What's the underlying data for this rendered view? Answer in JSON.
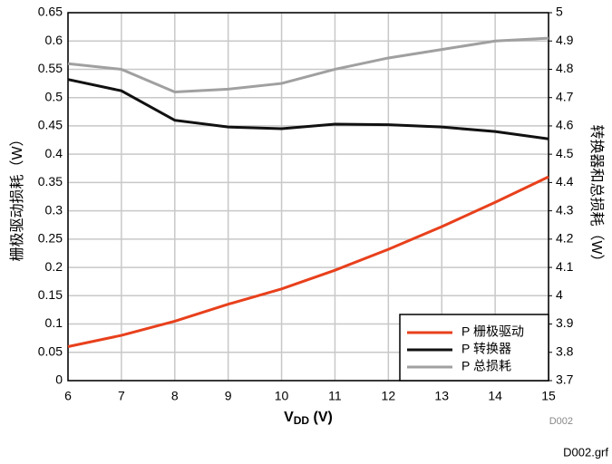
{
  "chart_data": {
    "type": "line",
    "ylabel": "栅极驱动损耗（W）",
    "y2label": "转换器和总损耗（W）",
    "xlabel_parts": [
      "V",
      "DD",
      " (V)"
    ],
    "annotations": [
      "D002",
      "D002.grf"
    ],
    "x": [
      6,
      7,
      8,
      9,
      10,
      11,
      12,
      13,
      14,
      15
    ],
    "xlim": [
      6,
      15
    ],
    "xticks": [
      6,
      7,
      8,
      9,
      10,
      11,
      12,
      13,
      14,
      15
    ],
    "ylim": [
      0,
      0.65
    ],
    "yticks": [
      0,
      0.05,
      0.1,
      0.15,
      0.2,
      0.25,
      0.3,
      0.35,
      0.4,
      0.45,
      0.5,
      0.55,
      0.6,
      0.65
    ],
    "y2lim": [
      3.7,
      5
    ],
    "y2ticks": [
      3.7,
      3.8,
      3.9,
      4,
      4.1,
      4.2,
      4.3,
      4.4,
      4.5,
      4.6,
      4.7,
      4.8,
      4.9,
      5
    ],
    "grid": true,
    "legend": "lower right",
    "series": [
      {
        "name": "P 栅极驱动",
        "color": "#e8401c",
        "values": [
          0.06,
          0.08,
          0.105,
          0.135,
          0.162,
          0.195,
          0.232,
          0.272,
          0.315,
          0.36
        ]
      },
      {
        "name": "P 转换器",
        "color": "#111111",
        "values": [
          0.532,
          0.512,
          0.46,
          0.448,
          0.445,
          0.453,
          0.452,
          0.448,
          0.44,
          0.427
        ]
      },
      {
        "name": "P 总损耗",
        "color": "#a0a0a0",
        "axis": "y2",
        "values": [
          4.82,
          4.8,
          4.72,
          4.73,
          4.75,
          4.8,
          4.84,
          4.87,
          4.9,
          4.91
        ]
      }
    ]
  }
}
